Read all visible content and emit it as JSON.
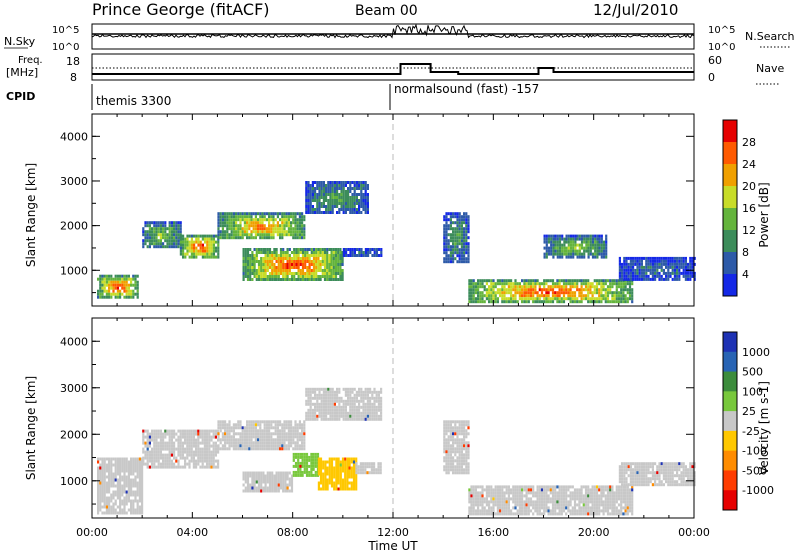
{
  "header": {
    "title": "Prince George (fitACF)",
    "beam": "Beam 00",
    "date": "12/Jul/2010"
  },
  "noise_panel": {
    "left_label": "N.Sky",
    "left_ticks": [
      "10^5",
      "10^0"
    ],
    "right_ticks": [
      "10^5",
      "10^0"
    ],
    "right_label": "N.Search"
  },
  "freq_panel": {
    "left_label_1": "Freq.",
    "left_label_2": "[MHz]",
    "left_ticks": [
      "18",
      "8"
    ],
    "right_ticks": [
      "60",
      "0"
    ],
    "right_label": "Nave"
  },
  "cpid": {
    "label": "CPID",
    "modes": [
      {
        "name": "themis 3300",
        "start_hour": 0
      },
      {
        "name": "normalsound (fast) -157",
        "start_hour": 12
      }
    ]
  },
  "colors": {
    "power": [
      "#1428e6",
      "#2d5aa8",
      "#3c8c5a",
      "#64b43c",
      "#c8dc28",
      "#f0a000",
      "#ff5a00",
      "#e60000"
    ],
    "velocity": [
      "#1e32b4",
      "#2864b4",
      "#3c8c3c",
      "#78c83c",
      "#c8c8c8",
      "#ffc800",
      "#ff8c00",
      "#ff3c00",
      "#e60000"
    ]
  },
  "chart_data": [
    {
      "type": "heatmap",
      "panel": "power",
      "ylabel": "Slant Range [km]",
      "yticks": [
        "1000",
        "2000",
        "3000",
        "4000"
      ],
      "ylim": [
        200,
        4500
      ],
      "xlim": [
        0,
        24
      ],
      "colorbar": {
        "label": "Power [dB]",
        "ticks": [
          "4",
          "8",
          "12",
          "16",
          "20",
          "24",
          "28"
        ],
        "range": [
          0,
          32
        ]
      },
      "features": [
        {
          "t0": 0.2,
          "t1": 1.8,
          "r0": 400,
          "r1": 900,
          "value": 28
        },
        {
          "t0": 2.0,
          "t1": 3.5,
          "r0": 1500,
          "r1": 2100,
          "value": 16
        },
        {
          "t0": 3.5,
          "t1": 5.0,
          "r0": 1300,
          "r1": 1800,
          "value": 28
        },
        {
          "t0": 5.0,
          "t1": 8.5,
          "r0": 1700,
          "r1": 2300,
          "value": 24
        },
        {
          "t0": 8.5,
          "t1": 11.0,
          "r0": 2300,
          "r1": 3000,
          "value": 12
        },
        {
          "t0": 6.0,
          "t1": 10.0,
          "r0": 800,
          "r1": 1500,
          "value": 28
        },
        {
          "t0": 10.0,
          "t1": 11.5,
          "r0": 1300,
          "r1": 1500,
          "value": 8
        },
        {
          "t0": 14.0,
          "t1": 15.0,
          "r0": 1200,
          "r1": 2300,
          "value": 12
        },
        {
          "t0": 15.0,
          "t1": 21.5,
          "r0": 300,
          "r1": 800,
          "value": 28
        },
        {
          "t0": 18.0,
          "t1": 20.5,
          "r0": 1300,
          "r1": 1800,
          "value": 16
        },
        {
          "t0": 21.0,
          "t1": 24.0,
          "r0": 800,
          "r1": 1300,
          "value": 8
        }
      ]
    },
    {
      "type": "heatmap",
      "panel": "velocity",
      "ylabel": "Slant Range [km]",
      "yticks": [
        "1000",
        "2000",
        "3000",
        "4000"
      ],
      "ylim": [
        200,
        4500
      ],
      "xlim": [
        0,
        24
      ],
      "colorbar": {
        "label": "Velocity [m s-1]",
        "ticks": [
          "1000",
          "500",
          "100",
          "25",
          "-25",
          "-100",
          "-500",
          "-1000"
        ],
        "range": [
          -1200,
          1200
        ]
      },
      "features": [
        {
          "t0": 0.2,
          "t1": 2.0,
          "r0": 300,
          "r1": 1500,
          "value": 0
        },
        {
          "t0": 2.0,
          "t1": 5.0,
          "r0": 1300,
          "r1": 2100,
          "value": 0
        },
        {
          "t0": 5.0,
          "t1": 8.5,
          "r0": 1700,
          "r1": 2300,
          "value": 0
        },
        {
          "t0": 8.5,
          "t1": 11.5,
          "r0": 2300,
          "r1": 3000,
          "value": 0
        },
        {
          "t0": 6.0,
          "t1": 8.0,
          "r0": 800,
          "r1": 1200,
          "value": 0
        },
        {
          "t0": 8.0,
          "t1": 9.0,
          "r0": 1100,
          "r1": 1600,
          "value": 70
        },
        {
          "t0": 9.0,
          "t1": 10.5,
          "r0": 800,
          "r1": 1500,
          "value": -60
        },
        {
          "t0": 10.5,
          "t1": 11.5,
          "r0": 1200,
          "r1": 1400,
          "value": 0
        },
        {
          "t0": 14.0,
          "t1": 15.0,
          "r0": 1200,
          "r1": 2300,
          "value": 0
        },
        {
          "t0": 15.0,
          "t1": 21.5,
          "r0": 300,
          "r1": 900,
          "value": 0
        },
        {
          "t0": 21.0,
          "t1": 24.0,
          "r0": 900,
          "r1": 1400,
          "value": 0
        }
      ]
    }
  ],
  "time_axis": {
    "ticks": [
      "00:00",
      "04:00",
      "08:00",
      "12:00",
      "16:00",
      "20:00",
      "00:00"
    ],
    "label": "Time UT"
  }
}
